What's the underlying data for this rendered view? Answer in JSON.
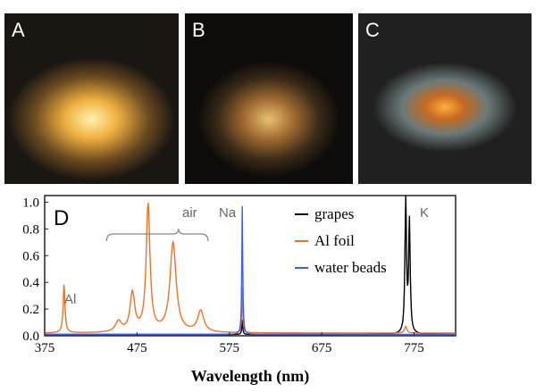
{
  "panels": [
    {
      "label": "A"
    },
    {
      "label": "B"
    },
    {
      "label": "C"
    }
  ],
  "chart_data": {
    "type": "line",
    "panel_label": "D",
    "xlabel": "Wavelength (nm)",
    "ylabel": "",
    "xlim": [
      375,
      820
    ],
    "ylim": [
      0,
      1.05
    ],
    "xticks": [
      "375",
      "475",
      "575",
      "675",
      "775"
    ],
    "yticks": [
      "0.0",
      "0.2",
      "0.4",
      "0.6",
      "0.8",
      "1.0"
    ],
    "legend": {
      "placement": "top-right"
    },
    "annotations": [
      "Al",
      "air",
      "Na",
      "K"
    ],
    "series": [
      {
        "name": "grapes",
        "color": "#000000",
        "baseline": 0.01,
        "peaks": [
          [
            589,
            0.11,
            0.6
          ],
          [
            766,
            1.0,
            1.0
          ],
          [
            770,
            0.83,
            1.0
          ]
        ]
      },
      {
        "name": "Al foil",
        "color": "#e8742a",
        "baseline": 0.02,
        "peaks": [
          [
            396,
            0.36,
            1.2
          ],
          [
            455,
            0.08,
            4
          ],
          [
            470,
            0.29,
            3
          ],
          [
            487,
            0.95,
            2.5
          ],
          [
            514,
            0.67,
            4
          ],
          [
            544,
            0.16,
            4
          ],
          [
            589,
            0.34,
            0.6
          ],
          [
            766,
            0.05,
            1.5
          ]
        ]
      },
      {
        "name": "water beads",
        "color": "#3a5ff0",
        "baseline": 0.01,
        "peaks": [
          [
            589,
            0.96,
            0.6
          ]
        ]
      }
    ]
  }
}
